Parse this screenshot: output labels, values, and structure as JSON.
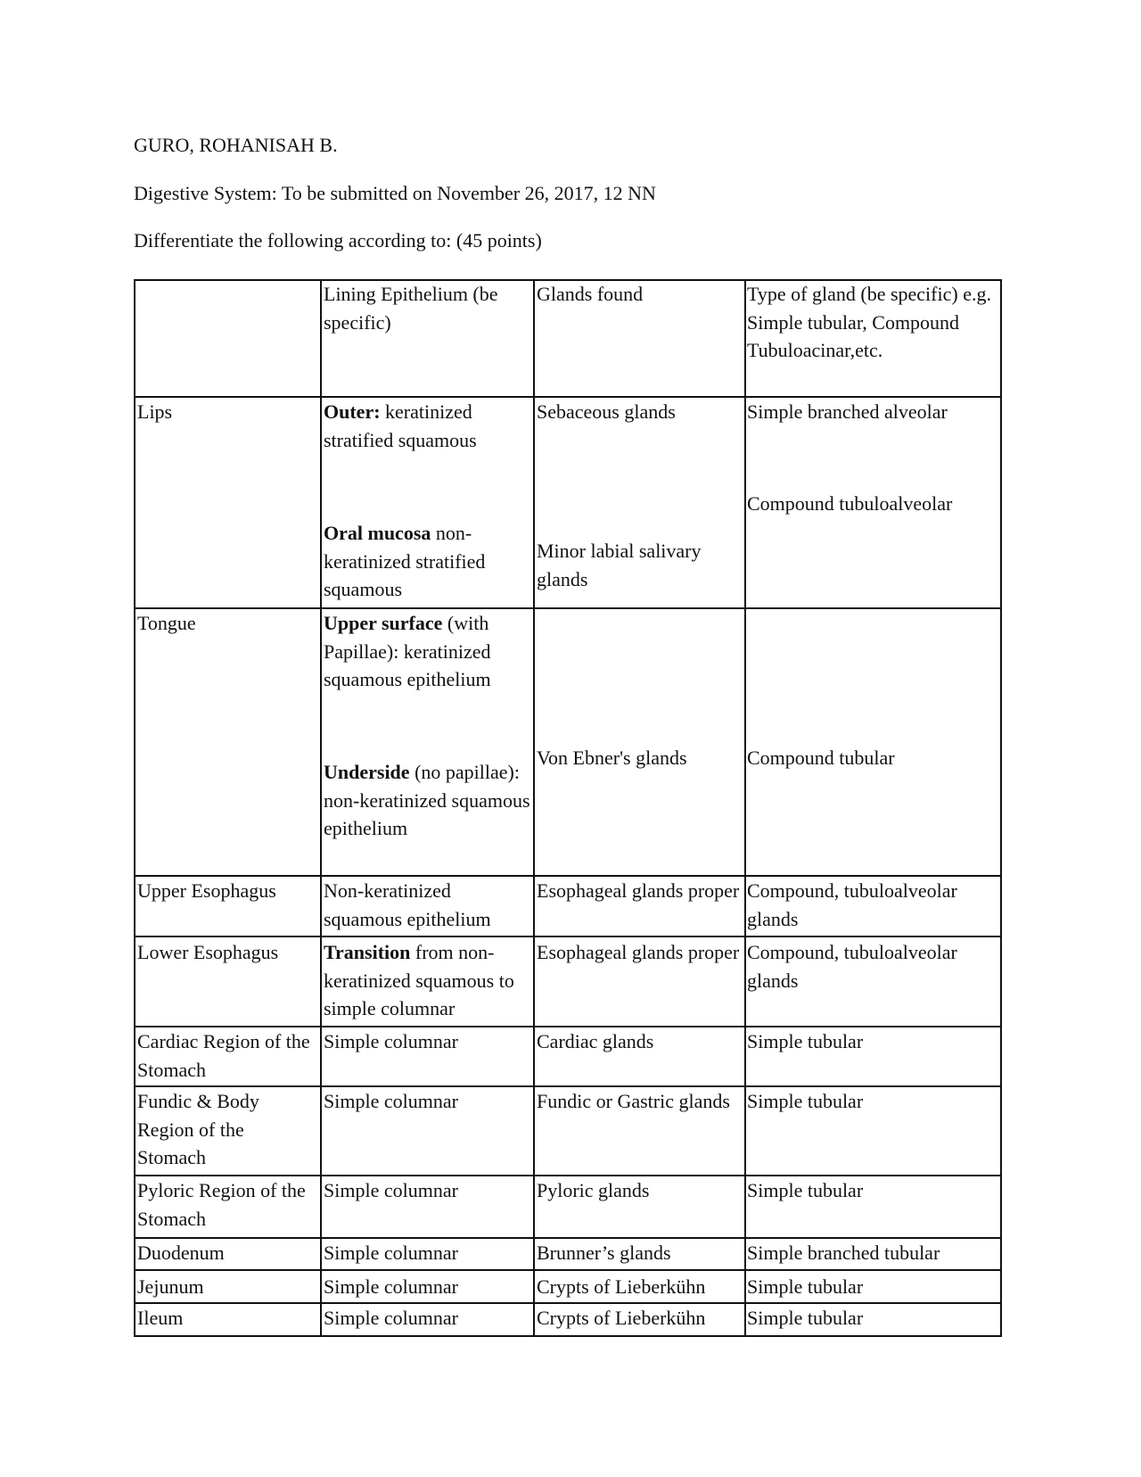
{
  "header": {
    "name": "GURO, ROHANISAH B.",
    "subject": "Digestive System: To be submitted on November 26, 2017, 12 NN",
    "instruction": "Differentiate the following according to: (45 points)"
  },
  "table": {
    "columns": [
      "",
      "Lining Epithelium (be specific)",
      "Glands found",
      "Type of gland (be specific) e.g. Simple tubular, Compound Tubuloacinar,etc."
    ],
    "rows": [
      {
        "organ": "Lips",
        "lining": [
          {
            "bold": "Outer:",
            "text": " keratinized stratified squamous"
          },
          {
            "bold": "Oral mucosa",
            "text": " non-keratinized stratified squamous"
          }
        ],
        "glands": [
          "Sebaceous glands",
          "Minor labial salivary glands"
        ],
        "type": [
          "Simple branched alveolar",
          "Compound tubuloalveolar"
        ]
      },
      {
        "organ": "Tongue",
        "lining": [
          {
            "bold": "Upper surface",
            "text": " (with Papillae): keratinized squamous epithelium"
          },
          {
            "bold": "Underside",
            "text": " (no papillae): non-keratinized squamous epithelium"
          }
        ],
        "glands": [
          "Von Ebner's glands"
        ],
        "type": [
          "Compound tubular"
        ]
      },
      {
        "organ": "Upper Esophagus",
        "lining": [
          {
            "bold": "",
            "text": "Non-keratinized squamous epithelium"
          }
        ],
        "glands": [
          "Esophageal glands proper"
        ],
        "type": [
          "Compound, tubuloalveolar glands"
        ]
      },
      {
        "organ": "Lower Esophagus",
        "lining": [
          {
            "bold": "Transition",
            "text": " from non-keratinized squamous to simple columnar"
          }
        ],
        "glands": [
          "Esophageal glands proper"
        ],
        "type": [
          "Compound, tubuloalveolar glands"
        ]
      },
      {
        "organ": "Cardiac Region of the Stomach",
        "lining": [
          {
            "bold": "",
            "text": "Simple columnar"
          }
        ],
        "glands": [
          "Cardiac glands"
        ],
        "type": [
          "Simple tubular"
        ]
      },
      {
        "organ": "Fundic & Body Region of the Stomach",
        "lining": [
          {
            "bold": "",
            "text": "Simple columnar"
          }
        ],
        "glands": [
          "Fundic or Gastric glands"
        ],
        "type": [
          "Simple tubular"
        ]
      },
      {
        "organ": "Pyloric Region of the Stomach",
        "lining": [
          {
            "bold": "",
            "text": "Simple columnar"
          }
        ],
        "glands": [
          "Pyloric glands"
        ],
        "type": [
          "Simple tubular"
        ]
      },
      {
        "organ": "Duodenum",
        "lining": [
          {
            "bold": "",
            "text": "Simple columnar"
          }
        ],
        "glands": [
          "Brunner’s glands"
        ],
        "type": [
          "Simple branched tubular"
        ]
      },
      {
        "organ": "Jejunum",
        "lining": [
          {
            "bold": "",
            "text": "Simple columnar"
          }
        ],
        "glands": [
          "Crypts of Lieberkühn"
        ],
        "type": [
          "Simple tubular"
        ]
      },
      {
        "organ": "Ileum",
        "lining": [
          {
            "bold": "",
            "text": "Simple columnar"
          }
        ],
        "glands": [
          "Crypts of Lieberkühn"
        ],
        "type": [
          "Simple tubular"
        ]
      }
    ]
  }
}
